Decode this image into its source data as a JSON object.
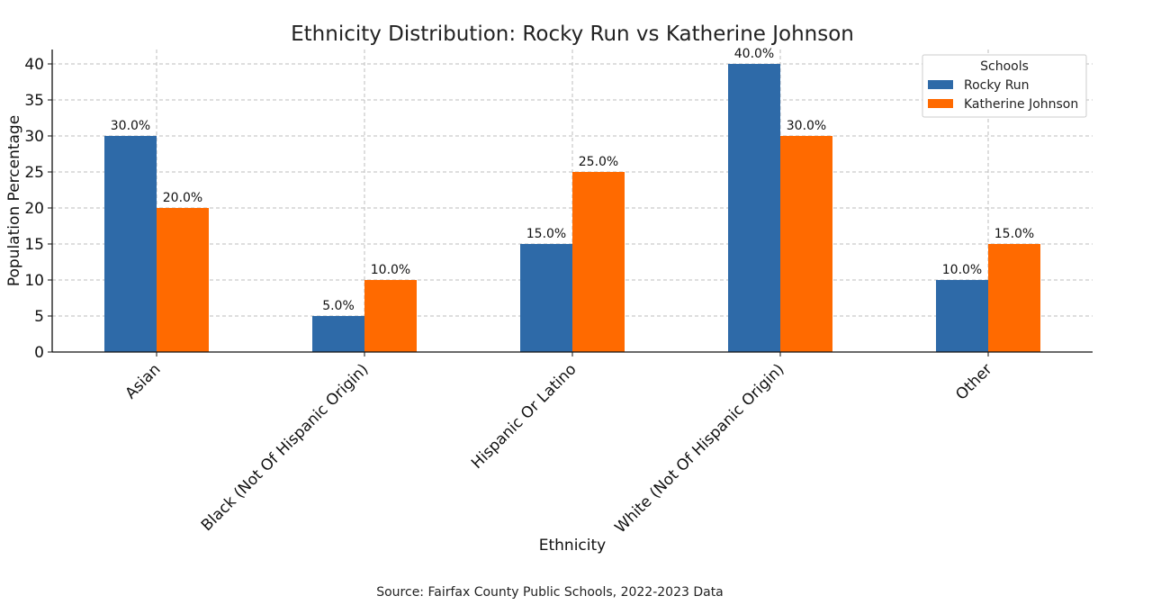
{
  "chart_data": {
    "type": "bar",
    "title": "Ethnicity Distribution: Rocky Run vs Katherine Johnson",
    "xlabel": "Ethnicity",
    "ylabel": "Population Percentage",
    "categories": [
      "Asian",
      "Black (Not Of Hispanic Origin)",
      "Hispanic Or Latino",
      "White (Not Of Hispanic Origin)",
      "Other"
    ],
    "series": [
      {
        "name": "Rocky Run",
        "values": [
          30,
          5,
          15,
          40,
          10
        ],
        "color": "#2e6aa8"
      },
      {
        "name": "Katherine Johnson",
        "values": [
          20,
          10,
          25,
          30,
          15
        ],
        "color": "#ff6a00"
      }
    ],
    "value_label_suffix": "%",
    "ylim": [
      0,
      42
    ],
    "yticks": [
      0,
      5,
      10,
      15,
      20,
      25,
      30,
      35,
      40
    ],
    "grid": true,
    "legend": {
      "title": "Schools",
      "position": "top-right"
    },
    "source": "Source: Fairfax County Public Schools, 2022-2023 Data"
  }
}
